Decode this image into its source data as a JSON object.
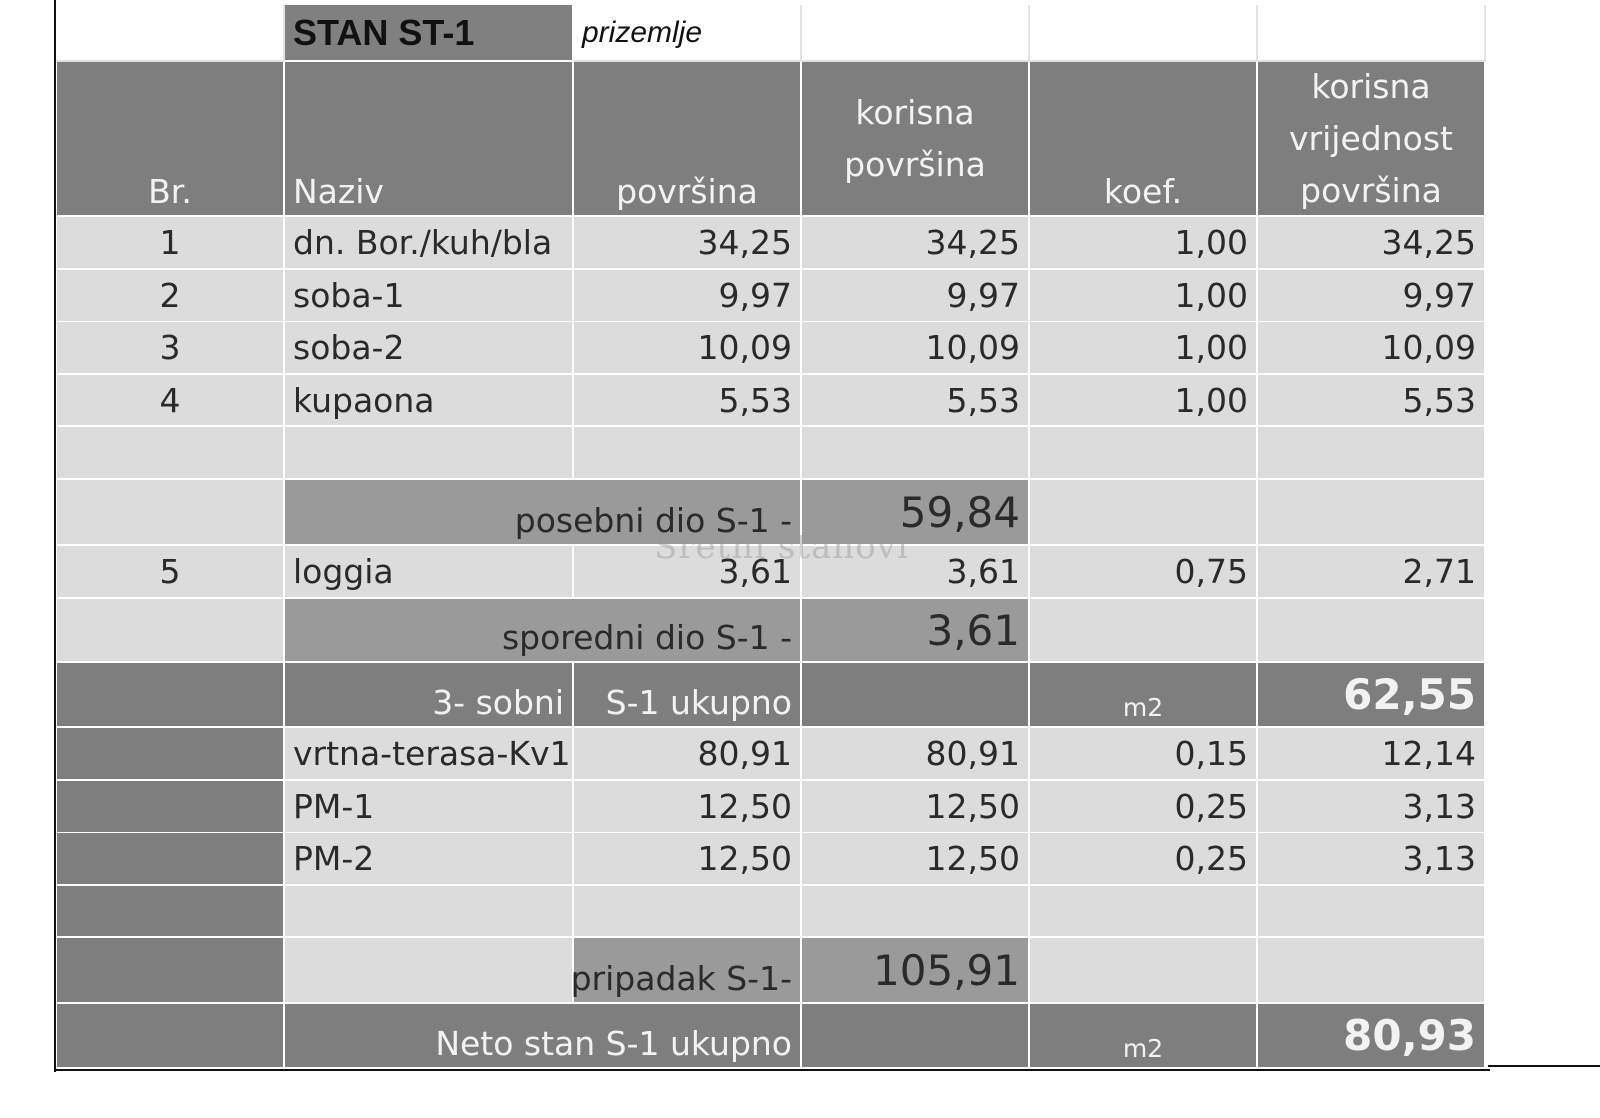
{
  "title": "STAN ST-1",
  "floor": "prizemlje",
  "headers": {
    "br": "Br.",
    "naziv": "Naziv",
    "povrsina": "površina",
    "korisna_povrsina": [
      "korisna",
      "površina"
    ],
    "koef": "koef.",
    "korisna_vrijednost": [
      "korisna",
      "vrijednost",
      "površina"
    ]
  },
  "rows_main": [
    {
      "br": "1",
      "naziv": "dn. Bor./kuh/bla",
      "povrsina": "34,25",
      "korisna": "34,25",
      "koef": "1,00",
      "vrijednost": "34,25"
    },
    {
      "br": "2",
      "naziv": "soba-1",
      "povrsina": "9,97",
      "korisna": "9,97",
      "koef": "1,00",
      "vrijednost": "9,97"
    },
    {
      "br": "3",
      "naziv": "soba-2",
      "povrsina": "10,09",
      "korisna": "10,09",
      "koef": "1,00",
      "vrijednost": "10,09"
    },
    {
      "br": "4",
      "naziv": "kupaona",
      "povrsina": "5,53",
      "korisna": "5,53",
      "koef": "1,00",
      "vrijednost": "5,53"
    }
  ],
  "posebni": {
    "label": "posebni dio S-1 -",
    "value": "59,84"
  },
  "loggia": {
    "br": "5",
    "naziv": "loggia",
    "povrsina": "3,61",
    "korisna": "3,61",
    "koef": "0,75",
    "vrijednost": "2,71"
  },
  "sporedni": {
    "label": "sporedni dio S-1 -",
    "value": "3,61"
  },
  "ukupno": {
    "type": "3- sobni",
    "label": "S-1 ukupno",
    "unit": "m2",
    "value": "62,55"
  },
  "rows_extra": [
    {
      "naziv": "vrtna-terasa-Kv1",
      "povrsina": "80,91",
      "korisna": "80,91",
      "koef": "0,15",
      "vrijednost": "12,14"
    },
    {
      "naziv": "PM-1",
      "povrsina": "12,50",
      "korisna": "12,50",
      "koef": "0,25",
      "vrijednost": "3,13"
    },
    {
      "naziv": "PM-2",
      "povrsina": "12,50",
      "korisna": "12,50",
      "koef": "0,25",
      "vrijednost": "3,13"
    }
  ],
  "pripadak": {
    "label": "pripadak S-1-",
    "value": "105,91"
  },
  "neto": {
    "label": "Neto stan S-1 ukupno",
    "unit": "m2",
    "value": "80,93"
  },
  "watermark": "Sretni stanovi",
  "colors": {
    "header_dark": "#7e7e7e",
    "row_light": "#dcdcdc",
    "subtotal_mid": "#9a9a9a"
  }
}
